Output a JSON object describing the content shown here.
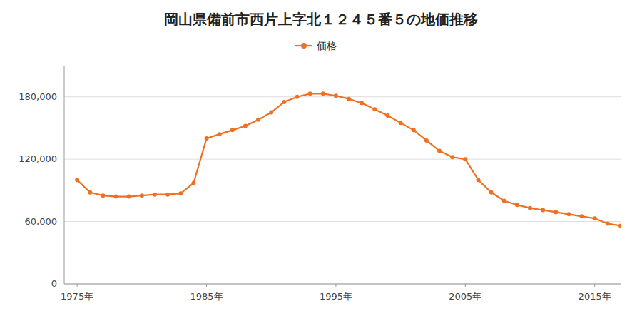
{
  "chart_data": {
    "type": "line",
    "title": "岡山県備前市西片上字北１２４５番５の地価推移",
    "x": [
      1975,
      1976,
      1977,
      1978,
      1979,
      1980,
      1981,
      1982,
      1983,
      1984,
      1985,
      1986,
      1987,
      1988,
      1989,
      1990,
      1991,
      1992,
      1993,
      1994,
      1995,
      1996,
      1997,
      1998,
      1999,
      2000,
      2001,
      2002,
      2003,
      2004,
      2005,
      2006,
      2007,
      2008,
      2009,
      2010,
      2011,
      2012,
      2013,
      2014,
      2015,
      2016,
      2017
    ],
    "series": [
      {
        "name": "価格",
        "color": "#f07020",
        "marker": "circle",
        "values": [
          100000,
          88000,
          85000,
          84000,
          84000,
          85000,
          86000,
          86000,
          87000,
          97000,
          140000,
          144000,
          148000,
          152000,
          158000,
          165000,
          175000,
          180000,
          183000,
          183000,
          181000,
          178000,
          174000,
          168000,
          162000,
          155000,
          148000,
          138000,
          128000,
          122000,
          120000,
          100000,
          88000,
          80000,
          76000,
          73000,
          71000,
          69000,
          67000,
          65000,
          63000,
          58000,
          56000
        ]
      }
    ],
    "xlim": [
      1974,
      2017
    ],
    "xticks": [
      {
        "value": 1975,
        "label": "1975年"
      },
      {
        "value": 1985,
        "label": "1985年"
      },
      {
        "value": 1995,
        "label": "1995年"
      },
      {
        "value": 2005,
        "label": "2005年"
      },
      {
        "value": 2015,
        "label": "2015年"
      }
    ],
    "ylim": [
      0,
      210000
    ],
    "yticks": [
      0,
      {
        "value": 60000,
        "label": "60,000"
      },
      {
        "value": 120000,
        "label": "120,000"
      },
      {
        "value": 180000,
        "label": "180,000"
      }
    ],
    "grid": true,
    "legend": "top"
  }
}
